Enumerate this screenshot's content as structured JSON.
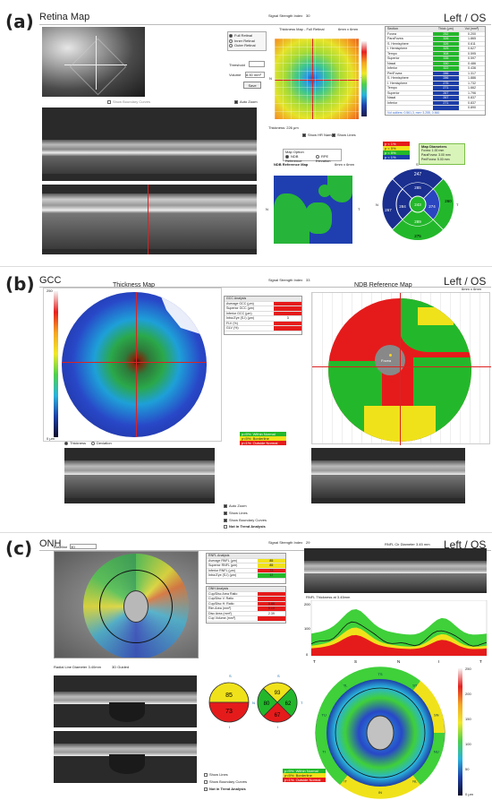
{
  "panel_a": {
    "label": "(a)",
    "title": "Retina Map",
    "eye": "Left / OS",
    "signal_label": "Signal Strength Index",
    "signal_value": "30",
    "thickness_map_title": "Thickness Map - Full Retinal",
    "map_size": "6mm x 6mm",
    "ndb_title": "NDB Reference Map",
    "ndb_size": "6mm x 6mm",
    "show_boundary_curves": "Show Boundary Curves",
    "auto_zoom": "Auto Zoom",
    "thickness_options": [
      "Full Retinal",
      "Inner Retinal",
      "Outer Retinal"
    ],
    "threshold_label": "Threshold",
    "volume_label": "Volume",
    "volume_value": "8.50 mm³",
    "save_label": "Save",
    "thickness_readout": "Thickness: 226 μm",
    "show_hr_names": "Show HR Names",
    "show_lines": "Show Lines",
    "map_option_title": "Map Option",
    "map_options": [
      "NDB Reference",
      "RPE Elevation"
    ],
    "compass": {
      "n": "N",
      "t": "T",
      "s": "S",
      "i": "I"
    },
    "table_headers": [
      "Section",
      "Thick (μm)",
      "Vol (mm³)"
    ],
    "table_rows": [
      [
        "Fovea",
        "252",
        "0.200"
      ],
      [
        "ParaFovea",
        "326",
        "1.865"
      ],
      [
        "S. Hemisphere",
        "326",
        "0.611"
      ],
      [
        "I. Hemisphere",
        "325",
        "0.627"
      ],
      [
        "Tempo",
        "308",
        "0.595"
      ],
      [
        "Superior",
        "335",
        "0.597"
      ],
      [
        "Nasal",
        "330",
        "0.486"
      ],
      [
        "Inferior",
        "322",
        "0.436"
      ],
      [
        "PeriFovea",
        "286",
        "1.317"
      ],
      [
        "S. Hemisphere",
        "286",
        "1.886"
      ],
      [
        "I. Hemisphere",
        "275",
        "1.732"
      ],
      [
        "Tempo",
        "271",
        "1.662"
      ],
      [
        "Superior",
        "267",
        "1.796"
      ],
      [
        "Nasal",
        "267",
        "0.837"
      ],
      [
        "Inferior",
        "271",
        "0.837"
      ],
      [
        "",
        "",
        "0.890"
      ]
    ],
    "table_footer": "Vol outliers: 0.561,3, mm³ 3.255, 0.560",
    "map_diameters_title": "Map Diameters",
    "map_diameters": [
      "Fovea: 1.00 mm",
      "ParaFovea: 3.00 mm",
      "PeriFovea: 5.00 mm"
    ],
    "legend": [
      "p < 1%",
      "p < 5%",
      "p < 5%",
      "p < 1%"
    ],
    "sectors": {
      "outer_s": "247",
      "inner_s": "285",
      "outer_n": "267",
      "inner_n": "284",
      "center": "243",
      "inner_t": "274",
      "outer_t": "260",
      "inner_i": "289",
      "outer_i": "275"
    }
  },
  "panel_b": {
    "label": "(b)",
    "title": "GCC",
    "eye": "Left / OS",
    "thickness_map_title": "Thickness Map",
    "signal_label": "Signal Strength Index",
    "signal_value": "33",
    "ndb_title": "NDB Reference Map",
    "map_size": "6mm x 6mm",
    "analysis_title": "GCC Analysis",
    "analysis_rows": [
      [
        "Average GCC (μm)",
        "",
        "red"
      ],
      [
        "Superior GCC (μm)",
        "",
        "red"
      ],
      [
        "Inferior GCC (μm)",
        "",
        "red"
      ],
      [
        "Intra-Eye (S-I) (μm)",
        "3",
        ""
      ],
      [
        "FLV (%)",
        "",
        "red"
      ],
      [
        "GLV (%)",
        "",
        "red"
      ]
    ],
    "radio_thickness": "Thickness",
    "radio_deviation": "Deviation",
    "legend_within": "p>5%: Within Normal",
    "legend_borderline": "p<5%: Borderline",
    "legend_outside": "p<1%: Outside Normal",
    "fovea_label": "Fovea",
    "auto_zoom": "Auto Zoom",
    "show_lines": "Show Lines",
    "show_boundary": "Show Boundary Curves",
    "not_trend": "Not in Trend Analysis",
    "colorbar_top": "250",
    "colorbar_bottom": "0 μm",
    "colorbar_ticks": [
      "250",
      "200",
      "150",
      "100",
      "50",
      "0 μm"
    ]
  },
  "panel_c": {
    "label": "(c)",
    "title": "ONH",
    "eye": "Left / OS",
    "signal_label": "Signal Strength Index",
    "signal_value": "29",
    "baseline_label": "Baseline",
    "baseline_value": "3D",
    "rnfl_title": "RNFL Analysis",
    "rnfl_rows": [
      [
        "Average RNFL (μm)",
        "85"
      ],
      [
        "Superior RNFL (μm)",
        "85"
      ],
      [
        "Inferior RNFL (μm)",
        "73"
      ],
      [
        "Intra-Eye (S-I) (μm)",
        "12"
      ]
    ],
    "onh_title": "ONH Analysis",
    "onh_rows": [
      [
        "Cup/Disc Area Ratio",
        ""
      ],
      [
        "Cup/Disc V. Ratio",
        ""
      ],
      [
        "Cup/Disc H. Ratio",
        "0.89"
      ],
      [
        "Rim Area (mm²)",
        "0.19"
      ],
      [
        "Disc Area (mm²)",
        "2.39"
      ],
      [
        "Cup Volume (mm³)",
        ""
      ]
    ],
    "scan_title": "RNFL Cir Diameter 3.45 mm",
    "thickness_chart_title": "RNFL Thickness at 3.45mm",
    "radial_label": "Radial Line Diameter 3.40mm",
    "guided_label": "3D Guided",
    "axis_labels": [
      "T",
      "S",
      "N",
      "I",
      "T"
    ],
    "chart_ticks": [
      "200",
      "100",
      "0"
    ],
    "hemi_s": "85",
    "hemi_i": "73",
    "quad_s": "93",
    "quad_n": "80",
    "quad_t": "62",
    "quad_i": "67",
    "ring_labels": {
      "top": "S",
      "bottom": "I",
      "right": "T",
      "left": "N"
    },
    "sectors_outer": [
      "TS",
      "ST",
      "SN",
      "NU",
      "NL",
      "IN",
      "IT",
      "TI",
      "TU",
      "TL"
    ],
    "sector_values": [
      "103",
      "104",
      "61",
      "84",
      "92",
      "79",
      "84",
      "72",
      "40",
      "56"
    ],
    "show_lines": "Show Lines",
    "show_boundary": "Show Boundary Curves",
    "not_trend": "Not in Trend Analysis",
    "legend_within": "p>5%: Within Normal",
    "legend_borderline": "p<5%: Borderline",
    "legend_outside": "p<1%: Outside Normal",
    "colorbar_ticks": [
      "250",
      "200",
      "150",
      "100",
      "50",
      "0 μm"
    ]
  }
}
